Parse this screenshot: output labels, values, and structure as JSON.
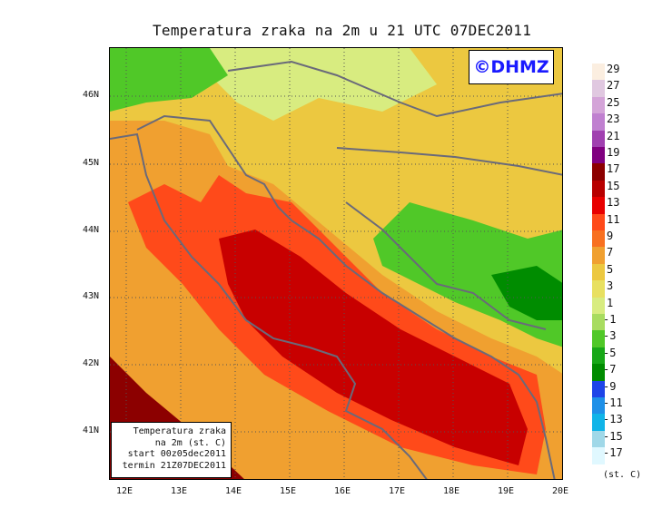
{
  "title": "Temperatura zraka na 2m u 21 UTC 07DEC2011",
  "logo_text": "©DHMZ",
  "info_box": {
    "line1": "Temperatura zraka",
    "line2": "na 2m (st. C)",
    "line3": "start 00z05dec2011",
    "line4": "termin 21Z07DEC2011"
  },
  "lat_labels": [
    "46N",
    "45N",
    "44N",
    "43N",
    "42N",
    "41N"
  ],
  "lon_labels": [
    "12E",
    "13E",
    "14E",
    "15E",
    "16E",
    "17E",
    "18E",
    "19E",
    "20E"
  ],
  "legend": {
    "unit": "(st. C)",
    "levels": [
      "29",
      "27",
      "25",
      "23",
      "21",
      "19",
      "17",
      "15",
      "13",
      "11",
      "9",
      "7",
      "5",
      "3",
      "1",
      "-1",
      "-3",
      "-5",
      "-7",
      "-9",
      "-11",
      "-13",
      "-15",
      "-17"
    ],
    "colors": [
      "#fbeee0",
      "#e0c8e0",
      "#d4a4d8",
      "#c080d0",
      "#a040b0",
      "#800080",
      "#8c0000",
      "#b80000",
      "#e80000",
      "#ff4a1a",
      "#f87020",
      "#f0a030",
      "#ecc840",
      "#e8e060",
      "#d8ec80",
      "#a8dc60",
      "#50c828",
      "#18a818",
      "#008c00",
      "#1e44e8",
      "#1e90e8",
      "#10b4e8",
      "#a0d8e8",
      "#e0f8ff"
    ]
  },
  "map_colors": {
    "ocean_warm": "#c80000",
    "ocean_mid": "#e80000",
    "coast_band": "#ff4a1a",
    "coast_orange": "#f0a030",
    "land_yellow": "#ecc840",
    "land_pale": "#e8e060",
    "land_light": "#d8ec80",
    "land_green": "#50c828",
    "land_darkgreen": "#008c00",
    "border": "#6a6a7a"
  }
}
